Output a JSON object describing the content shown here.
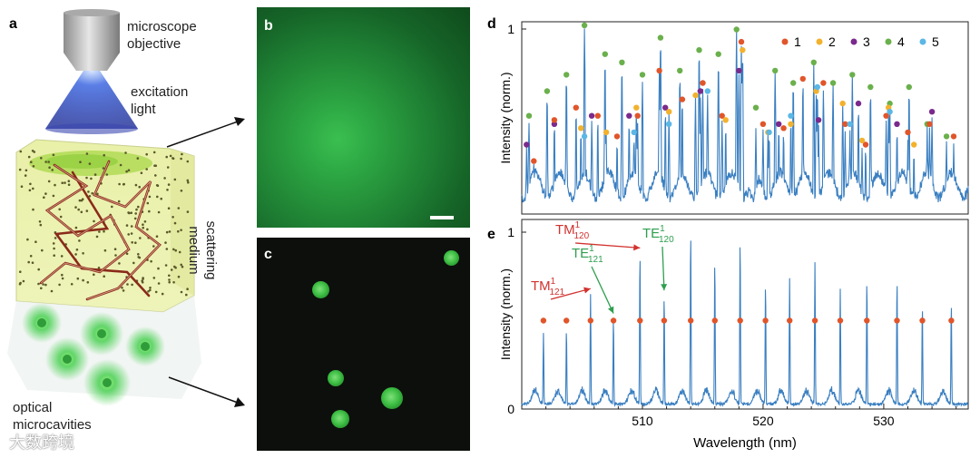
{
  "panel_a": {
    "letter": "a",
    "microscope_objective": [
      "microscope",
      "objective"
    ],
    "excitation_light": [
      "excitation",
      "light"
    ],
    "scattering_medium": [
      "scattering",
      "medium"
    ],
    "optical_microcavities": [
      "optical",
      "microcavities"
    ]
  },
  "panel_b": {
    "letter": "b"
  },
  "panel_c": {
    "letter": "c"
  },
  "watermark": "大数跨境",
  "chart_data": [
    {
      "panel": "d",
      "type": "line",
      "ylabel": "Intensity (norm.)",
      "yticks": [
        "1"
      ],
      "ylim": [
        0.55,
        1.0
      ],
      "xlim": [
        500,
        537
      ],
      "legend_placement": "top-right",
      "legend": [
        {
          "name": "1",
          "color": "#e1552a"
        },
        {
          "name": "2",
          "color": "#f2b22d"
        },
        {
          "name": "3",
          "color": "#7a2a8c"
        },
        {
          "name": "4",
          "color": "#6ab04c"
        },
        {
          "name": "5",
          "color": "#5bb7e5"
        }
      ],
      "series_color": "#3a7fc1",
      "peaks": [
        {
          "x": 500.6,
          "y": 0.78,
          "g": "4"
        },
        {
          "x": 502.1,
          "y": 0.84,
          "g": "4"
        },
        {
          "x": 503.7,
          "y": 0.88,
          "g": "4"
        },
        {
          "x": 505.2,
          "y": 1.0,
          "g": "4"
        },
        {
          "x": 506.9,
          "y": 0.93,
          "g": "4"
        },
        {
          "x": 508.3,
          "y": 0.91,
          "g": "4"
        },
        {
          "x": 510.0,
          "y": 0.88,
          "g": "4"
        },
        {
          "x": 511.5,
          "y": 0.97,
          "g": "4"
        },
        {
          "x": 513.1,
          "y": 0.89,
          "g": "4"
        },
        {
          "x": 514.7,
          "y": 0.94,
          "g": "4"
        },
        {
          "x": 516.3,
          "y": 0.93,
          "g": "4"
        },
        {
          "x": 517.8,
          "y": 0.99,
          "g": "4"
        },
        {
          "x": 519.4,
          "y": 0.8,
          "g": "4"
        },
        {
          "x": 521.0,
          "y": 0.89,
          "g": "4"
        },
        {
          "x": 522.5,
          "y": 0.86,
          "g": "4"
        },
        {
          "x": 524.2,
          "y": 0.91,
          "g": "4"
        },
        {
          "x": 525.8,
          "y": 0.86,
          "g": "4"
        },
        {
          "x": 527.4,
          "y": 0.88,
          "g": "4"
        },
        {
          "x": 528.9,
          "y": 0.85,
          "g": "4"
        },
        {
          "x": 530.5,
          "y": 0.81,
          "g": "4"
        },
        {
          "x": 532.1,
          "y": 0.85,
          "g": "4"
        },
        {
          "x": 533.6,
          "y": 0.76,
          "g": "4"
        },
        {
          "x": 535.2,
          "y": 0.73,
          "g": "4"
        },
        {
          "x": 500.4,
          "y": 0.71,
          "g": "3"
        },
        {
          "x": 502.7,
          "y": 0.76,
          "g": "3"
        },
        {
          "x": 505.8,
          "y": 0.78,
          "g": "3"
        },
        {
          "x": 508.9,
          "y": 0.78,
          "g": "3"
        },
        {
          "x": 511.9,
          "y": 0.8,
          "g": "3"
        },
        {
          "x": 514.8,
          "y": 0.84,
          "g": "3"
        },
        {
          "x": 518.0,
          "y": 0.89,
          "g": "3"
        },
        {
          "x": 521.3,
          "y": 0.76,
          "g": "3"
        },
        {
          "x": 524.6,
          "y": 0.77,
          "g": "3"
        },
        {
          "x": 527.9,
          "y": 0.81,
          "g": "3"
        },
        {
          "x": 531.1,
          "y": 0.76,
          "g": "3"
        },
        {
          "x": 534.0,
          "y": 0.79,
          "g": "3"
        },
        {
          "x": 501.0,
          "y": 0.67,
          "g": "1"
        },
        {
          "x": 502.7,
          "y": 0.77,
          "g": "1"
        },
        {
          "x": 504.5,
          "y": 0.8,
          "g": "1"
        },
        {
          "x": 506.3,
          "y": 0.78,
          "g": "1"
        },
        {
          "x": 507.9,
          "y": 0.73,
          "g": "1"
        },
        {
          "x": 509.6,
          "y": 0.78,
          "g": "1"
        },
        {
          "x": 511.4,
          "y": 0.89,
          "g": "1"
        },
        {
          "x": 513.3,
          "y": 0.82,
          "g": "1"
        },
        {
          "x": 515.0,
          "y": 0.86,
          "g": "1"
        },
        {
          "x": 516.6,
          "y": 0.78,
          "g": "1"
        },
        {
          "x": 518.2,
          "y": 0.96,
          "g": "1"
        },
        {
          "x": 520.0,
          "y": 0.76,
          "g": "1"
        },
        {
          "x": 521.7,
          "y": 0.75,
          "g": "1"
        },
        {
          "x": 523.3,
          "y": 0.87,
          "g": "1"
        },
        {
          "x": 525.0,
          "y": 0.86,
          "g": "1"
        },
        {
          "x": 526.8,
          "y": 0.76,
          "g": "1"
        },
        {
          "x": 528.5,
          "y": 0.71,
          "g": "1"
        },
        {
          "x": 530.2,
          "y": 0.78,
          "g": "1"
        },
        {
          "x": 532.0,
          "y": 0.74,
          "g": "1"
        },
        {
          "x": 533.8,
          "y": 0.76,
          "g": "1"
        },
        {
          "x": 535.8,
          "y": 0.73,
          "g": "1"
        },
        {
          "x": 504.9,
          "y": 0.75,
          "g": "2"
        },
        {
          "x": 507.0,
          "y": 0.74,
          "g": "2"
        },
        {
          "x": 509.5,
          "y": 0.8,
          "g": "2"
        },
        {
          "x": 512.2,
          "y": 0.79,
          "g": "2"
        },
        {
          "x": 514.4,
          "y": 0.83,
          "g": "2"
        },
        {
          "x": 516.9,
          "y": 0.77,
          "g": "2"
        },
        {
          "x": 518.3,
          "y": 0.94,
          "g": "2"
        },
        {
          "x": 520.4,
          "y": 0.74,
          "g": "2"
        },
        {
          "x": 522.3,
          "y": 0.76,
          "g": "2"
        },
        {
          "x": 524.4,
          "y": 0.84,
          "g": "2"
        },
        {
          "x": 526.6,
          "y": 0.81,
          "g": "2"
        },
        {
          "x": 528.2,
          "y": 0.72,
          "g": "2"
        },
        {
          "x": 530.4,
          "y": 0.8,
          "g": "2"
        },
        {
          "x": 532.5,
          "y": 0.71,
          "g": "2"
        },
        {
          "x": 505.2,
          "y": 0.73,
          "g": "5"
        },
        {
          "x": 509.3,
          "y": 0.74,
          "g": "5"
        },
        {
          "x": 512.2,
          "y": 0.76,
          "g": "5"
        },
        {
          "x": 515.4,
          "y": 0.84,
          "g": "5"
        },
        {
          "x": 520.5,
          "y": 0.74,
          "g": "5"
        },
        {
          "x": 522.3,
          "y": 0.78,
          "g": "5"
        },
        {
          "x": 524.5,
          "y": 0.85,
          "g": "5"
        },
        {
          "x": 527.2,
          "y": 0.76,
          "g": "5"
        },
        {
          "x": 530.5,
          "y": 0.79,
          "g": "5"
        }
      ]
    },
    {
      "panel": "e",
      "type": "line",
      "xlabel": "Wavelength (nm)",
      "ylabel": "Intensity (norm.)",
      "xticks": [
        510,
        520,
        530
      ],
      "yticks": [
        "0",
        "1"
      ],
      "xlim": [
        500,
        537
      ],
      "ylim": [
        0,
        1
      ],
      "series_color": "#3a7fc1",
      "marker_level": 0.5,
      "marker_color": "#e1552a",
      "peaks": [
        {
          "x": 501.8,
          "y": 0.43
        },
        {
          "x": 503.7,
          "y": 0.45
        },
        {
          "x": 505.7,
          "y": 0.65
        },
        {
          "x": 507.6,
          "y": 0.51
        },
        {
          "x": 509.8,
          "y": 0.88
        },
        {
          "x": 511.8,
          "y": 0.64
        },
        {
          "x": 514.0,
          "y": 1.0
        },
        {
          "x": 516.0,
          "y": 0.84
        },
        {
          "x": 518.1,
          "y": 0.96
        },
        {
          "x": 520.2,
          "y": 0.71
        },
        {
          "x": 522.2,
          "y": 0.74
        },
        {
          "x": 524.3,
          "y": 0.83
        },
        {
          "x": 526.4,
          "y": 0.68
        },
        {
          "x": 528.6,
          "y": 0.73
        },
        {
          "x": 531.1,
          "y": 0.73
        },
        {
          "x": 533.2,
          "y": 0.58
        },
        {
          "x": 535.6,
          "y": 0.6
        }
      ],
      "markers_x": [
        501.8,
        503.7,
        505.7,
        507.6,
        509.8,
        511.8,
        514.0,
        516.0,
        518.1,
        520.2,
        522.2,
        524.3,
        526.4,
        528.6,
        531.1,
        533.2,
        535.6
      ],
      "annotations": [
        {
          "base": "TM",
          "sup": "1",
          "sub": "120",
          "color": "#d1322f",
          "points_to_x": 509.8,
          "points_to_y": 0.88
        },
        {
          "base": "TE",
          "sup": "1",
          "sub": "121",
          "color": "#2e9e4f",
          "points_to_x": 507.6,
          "points_to_y": 0.51
        },
        {
          "base": "TM",
          "sup": "1",
          "sub": "121",
          "color": "#d1322f",
          "points_to_x": 505.7,
          "points_to_y": 0.65
        },
        {
          "base": "TE",
          "sup": "1",
          "sub": "120",
          "color": "#2e9e4f",
          "points_to_x": 511.8,
          "points_to_y": 0.64
        }
      ]
    }
  ]
}
